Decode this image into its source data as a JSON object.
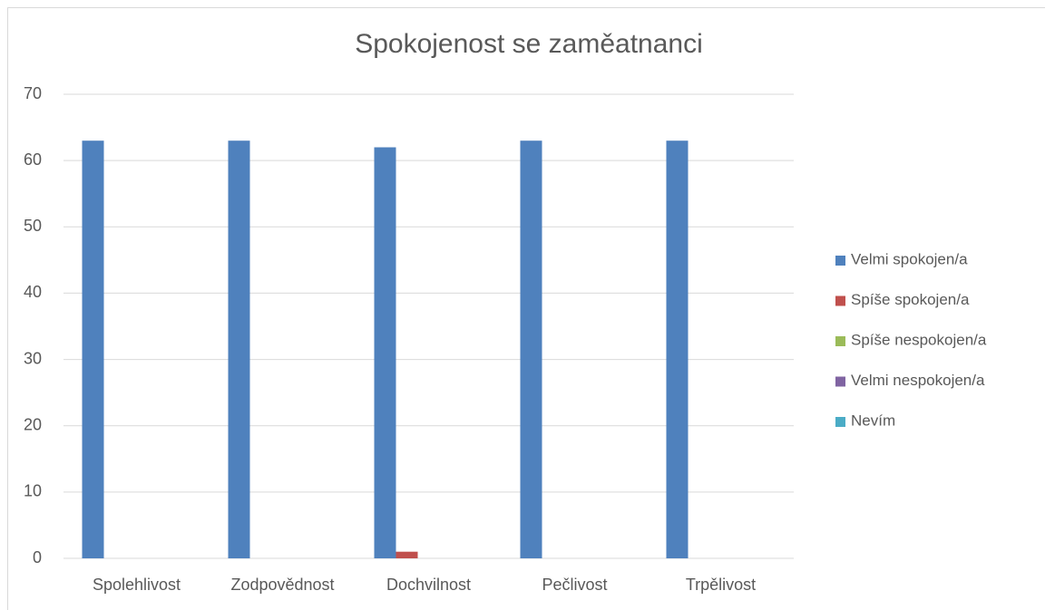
{
  "chart_data": {
    "type": "bar",
    "title": "Spokojenost se zaměatnanci",
    "categories": [
      "Spolehlivost",
      "Zodpovědnost",
      "Dochvilnost",
      "Pečlivost",
      "Trpělivost"
    ],
    "series": [
      {
        "name": "Velmi spokojen/a",
        "color": "#4f81bd",
        "values": [
          63,
          63,
          62,
          63,
          63
        ]
      },
      {
        "name": "Spíše spokojen/a",
        "color": "#c0504d",
        "values": [
          0,
          0,
          1,
          0,
          0
        ]
      },
      {
        "name": "Spíše nespokojen/a",
        "color": "#9bbb59",
        "values": [
          0,
          0,
          0,
          0,
          0
        ]
      },
      {
        "name": "Velmi nespokojen/a",
        "color": "#8064a2",
        "values": [
          0,
          0,
          0,
          0,
          0
        ]
      },
      {
        "name": "Nevím",
        "color": "#4bacc6",
        "values": [
          0,
          0,
          0,
          0,
          0
        ]
      }
    ],
    "ylim": [
      0,
      70
    ],
    "yticks": [
      0,
      10,
      20,
      30,
      40,
      50,
      60,
      70
    ],
    "grid": true,
    "legend": "right"
  }
}
